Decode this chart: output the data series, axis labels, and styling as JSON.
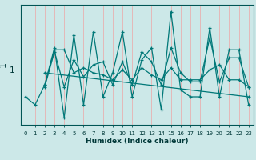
{
  "title": "",
  "xlabel": "Humidex (Indice chaleur)",
  "ylabel": "1",
  "background_color": "#cce8e8",
  "line_color": "#007878",
  "grid_color_v": "#e8b0b0",
  "grid_color_h": "#a8c8c8",
  "xlim": [
    -0.5,
    23.5
  ],
  "ylim": [
    0.45,
    1.65
  ],
  "yticks": [
    1.0
  ],
  "ytick_labels": [
    "1"
  ],
  "xticks": [
    0,
    1,
    2,
    3,
    4,
    5,
    6,
    7,
    8,
    9,
    10,
    11,
    12,
    13,
    14,
    15,
    16,
    17,
    18,
    19,
    20,
    21,
    22,
    23
  ],
  "lines": [
    {
      "x": [
        2,
        3,
        4,
        5,
        6,
        7,
        8,
        9,
        10,
        11,
        12,
        13,
        14,
        15,
        16,
        17,
        18,
        19,
        20,
        21,
        22,
        23
      ],
      "y": [
        0.83,
        1.18,
        0.83,
        1.1,
        0.93,
        1.05,
        1.08,
        0.85,
        1.08,
        0.85,
        1.18,
        1.08,
        0.85,
        1.22,
        0.97,
        0.88,
        0.88,
        1.32,
        0.88,
        1.12,
        1.12,
        0.83
      ]
    },
    {
      "x": [
        2,
        3,
        4,
        5,
        6,
        7,
        8,
        9,
        10,
        11,
        12,
        13,
        14,
        15,
        16,
        17,
        18,
        19,
        20,
        21,
        22,
        23
      ],
      "y": [
        0.85,
        1.2,
        1.2,
        0.97,
        1.02,
        0.97,
        0.95,
        0.9,
        1.0,
        0.9,
        1.02,
        0.95,
        0.9,
        1.02,
        0.9,
        0.9,
        0.9,
        1.0,
        1.05,
        0.9,
        0.9,
        0.83
      ]
    },
    {
      "x": [
        0,
        1,
        2,
        3,
        4,
        5,
        6,
        7,
        8,
        9,
        10,
        11,
        12,
        13,
        14,
        15,
        16,
        17,
        18,
        19,
        20,
        21,
        22,
        23
      ],
      "y": [
        0.73,
        0.65,
        0.85,
        1.22,
        0.52,
        1.35,
        0.65,
        1.38,
        0.73,
        0.97,
        1.38,
        0.73,
        1.1,
        1.22,
        0.6,
        1.58,
        0.8,
        0.73,
        0.73,
        1.42,
        0.73,
        1.2,
        1.2,
        0.65
      ]
    },
    {
      "x": [
        2,
        23
      ],
      "y": [
        0.97,
        0.73
      ]
    }
  ]
}
